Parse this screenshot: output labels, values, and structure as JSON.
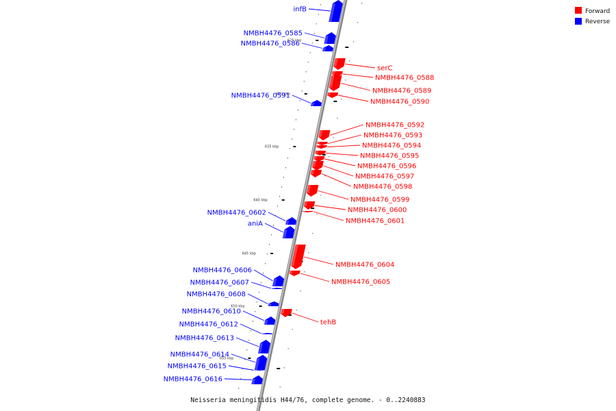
{
  "caption": "Neisseria meningitidis H44/76, complete genome. - 0..2240883",
  "legend": [
    {
      "label": "Forward",
      "color": "#ff0000"
    },
    {
      "label": "Reverse",
      "color": "#0000ff"
    }
  ],
  "colors": {
    "forward": "#ff0000",
    "reverse": "#0000ff",
    "backbone": "#888888"
  },
  "ticks": [
    "625 kbp",
    "630 kbp",
    "635 kbp",
    "640 kbp",
    "645 kbp",
    "650 kbp",
    "655 kbp"
  ],
  "genes": [
    {
      "name": "infB",
      "strand": "reverse"
    },
    {
      "name": "NMBH4476_0585",
      "strand": "reverse"
    },
    {
      "name": "NMBH4476_0586",
      "strand": "reverse"
    },
    {
      "name": "serC",
      "strand": "forward"
    },
    {
      "name": "NMBH4476_0588",
      "strand": "forward"
    },
    {
      "name": "NMBH4476_0589",
      "strand": "forward"
    },
    {
      "name": "NMBH4476_0590",
      "strand": "forward"
    },
    {
      "name": "NMBH4476_0591",
      "strand": "reverse"
    },
    {
      "name": "NMBH4476_0592",
      "strand": "forward"
    },
    {
      "name": "NMBH4476_0593",
      "strand": "forward"
    },
    {
      "name": "NMBH4476_0594",
      "strand": "forward"
    },
    {
      "name": "NMBH4476_0595",
      "strand": "forward"
    },
    {
      "name": "NMBH4476_0596",
      "strand": "forward"
    },
    {
      "name": "NMBH4476_0597",
      "strand": "forward"
    },
    {
      "name": "NMBH4476_0598",
      "strand": "forward"
    },
    {
      "name": "NMBH4476_0599",
      "strand": "forward"
    },
    {
      "name": "NMBH4476_0600",
      "strand": "forward"
    },
    {
      "name": "NMBH4476_0601",
      "strand": "forward"
    },
    {
      "name": "NMBH4476_0602",
      "strand": "reverse"
    },
    {
      "name": "aniA",
      "strand": "reverse"
    },
    {
      "name": "NMBH4476_0604",
      "strand": "forward"
    },
    {
      "name": "NMBH4476_0605",
      "strand": "forward"
    },
    {
      "name": "NMBH4476_0606",
      "strand": "reverse"
    },
    {
      "name": "NMBH4476_0607",
      "strand": "reverse"
    },
    {
      "name": "NMBH4476_0608",
      "strand": "reverse"
    },
    {
      "name": "tehB",
      "strand": "forward"
    },
    {
      "name": "NMBH4476_0610",
      "strand": "reverse"
    },
    {
      "name": "NMBH4476_0612",
      "strand": "reverse"
    },
    {
      "name": "NMBH4476_0613",
      "strand": "reverse"
    },
    {
      "name": "NMBH4476_0614",
      "strand": "reverse"
    },
    {
      "name": "NMBH4476_0615",
      "strand": "reverse"
    },
    {
      "name": "NMBH4476_0616",
      "strand": "reverse"
    }
  ]
}
